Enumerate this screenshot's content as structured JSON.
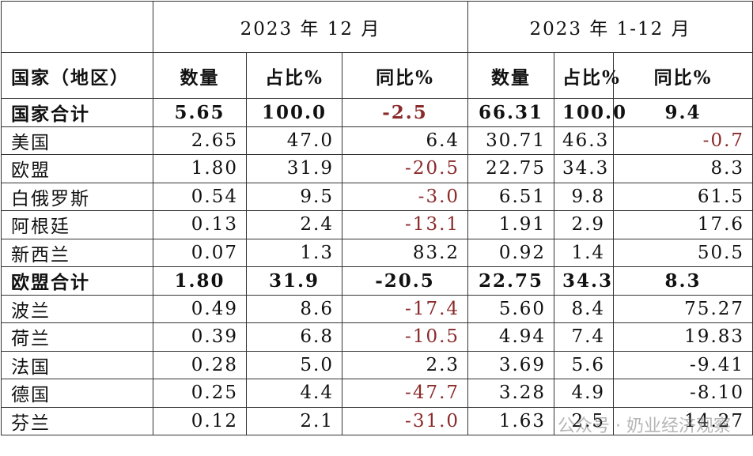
{
  "table": {
    "header": {
      "periods": [
        "2023 年 12 月",
        "2023 年 1-12 月"
      ],
      "columns": [
        "国家（地区）",
        "数量",
        "占比%",
        "同比%",
        "数量",
        "占比%",
        "同比%"
      ]
    },
    "rows": [
      {
        "bold": true,
        "cells": [
          "国家合计",
          "5.65",
          "100.0",
          {
            "text": "-2.5",
            "color": "#8a2a2a"
          },
          "66.31",
          "100.0",
          "9.4"
        ]
      },
      {
        "cells": [
          "美国",
          "2.65",
          "47.0",
          "6.4",
          "30.71",
          "46.3",
          {
            "text": "-0.7",
            "color": "#8a2a2a"
          }
        ]
      },
      {
        "cells": [
          "欧盟",
          "1.80",
          "31.9",
          {
            "text": "-20.5",
            "color": "#8a2a2a"
          },
          "22.75",
          "34.3",
          "8.3"
        ]
      },
      {
        "cells": [
          "白俄罗斯",
          "0.54",
          "9.5",
          {
            "text": "-3.0",
            "color": "#8a2a2a"
          },
          "6.51",
          "9.8",
          "61.5"
        ]
      },
      {
        "cells": [
          "阿根廷",
          "0.13",
          "2.4",
          {
            "text": "-13.1",
            "color": "#8a2a2a"
          },
          "1.91",
          "2.9",
          "17.6"
        ]
      },
      {
        "cells": [
          "新西兰",
          "0.07",
          "1.3",
          "83.2",
          "0.92",
          "1.4",
          "50.5"
        ]
      },
      {
        "bold": true,
        "cells": [
          "欧盟合计",
          "1.80",
          "31.9",
          "-20.5",
          "22.75",
          "34.3",
          "8.3"
        ]
      },
      {
        "cells": [
          "波兰",
          "0.49",
          "8.6",
          {
            "text": "-17.4",
            "color": "#8a2a2a"
          },
          "5.60",
          "8.4",
          "75.27"
        ]
      },
      {
        "cells": [
          "荷兰",
          "0.39",
          "6.8",
          {
            "text": "-10.5",
            "color": "#8a2a2a"
          },
          "4.94",
          "7.4",
          "19.83"
        ]
      },
      {
        "cells": [
          "法国",
          "0.28",
          "5.0",
          "2.3",
          "3.69",
          "5.6",
          "-9.41"
        ]
      },
      {
        "cells": [
          "德国",
          "0.25",
          "4.4",
          {
            "text": "-47.7",
            "color": "#8a2a2a"
          },
          "3.28",
          "4.9",
          "-8.10"
        ]
      },
      {
        "cells": [
          "芬兰",
          "0.12",
          "2.1",
          {
            "text": "-31.0",
            "color": "#8a2a2a"
          },
          "1.63",
          "2.5",
          "14.27"
        ]
      }
    ]
  },
  "watermark": "公众号 · 奶业经济观察"
}
